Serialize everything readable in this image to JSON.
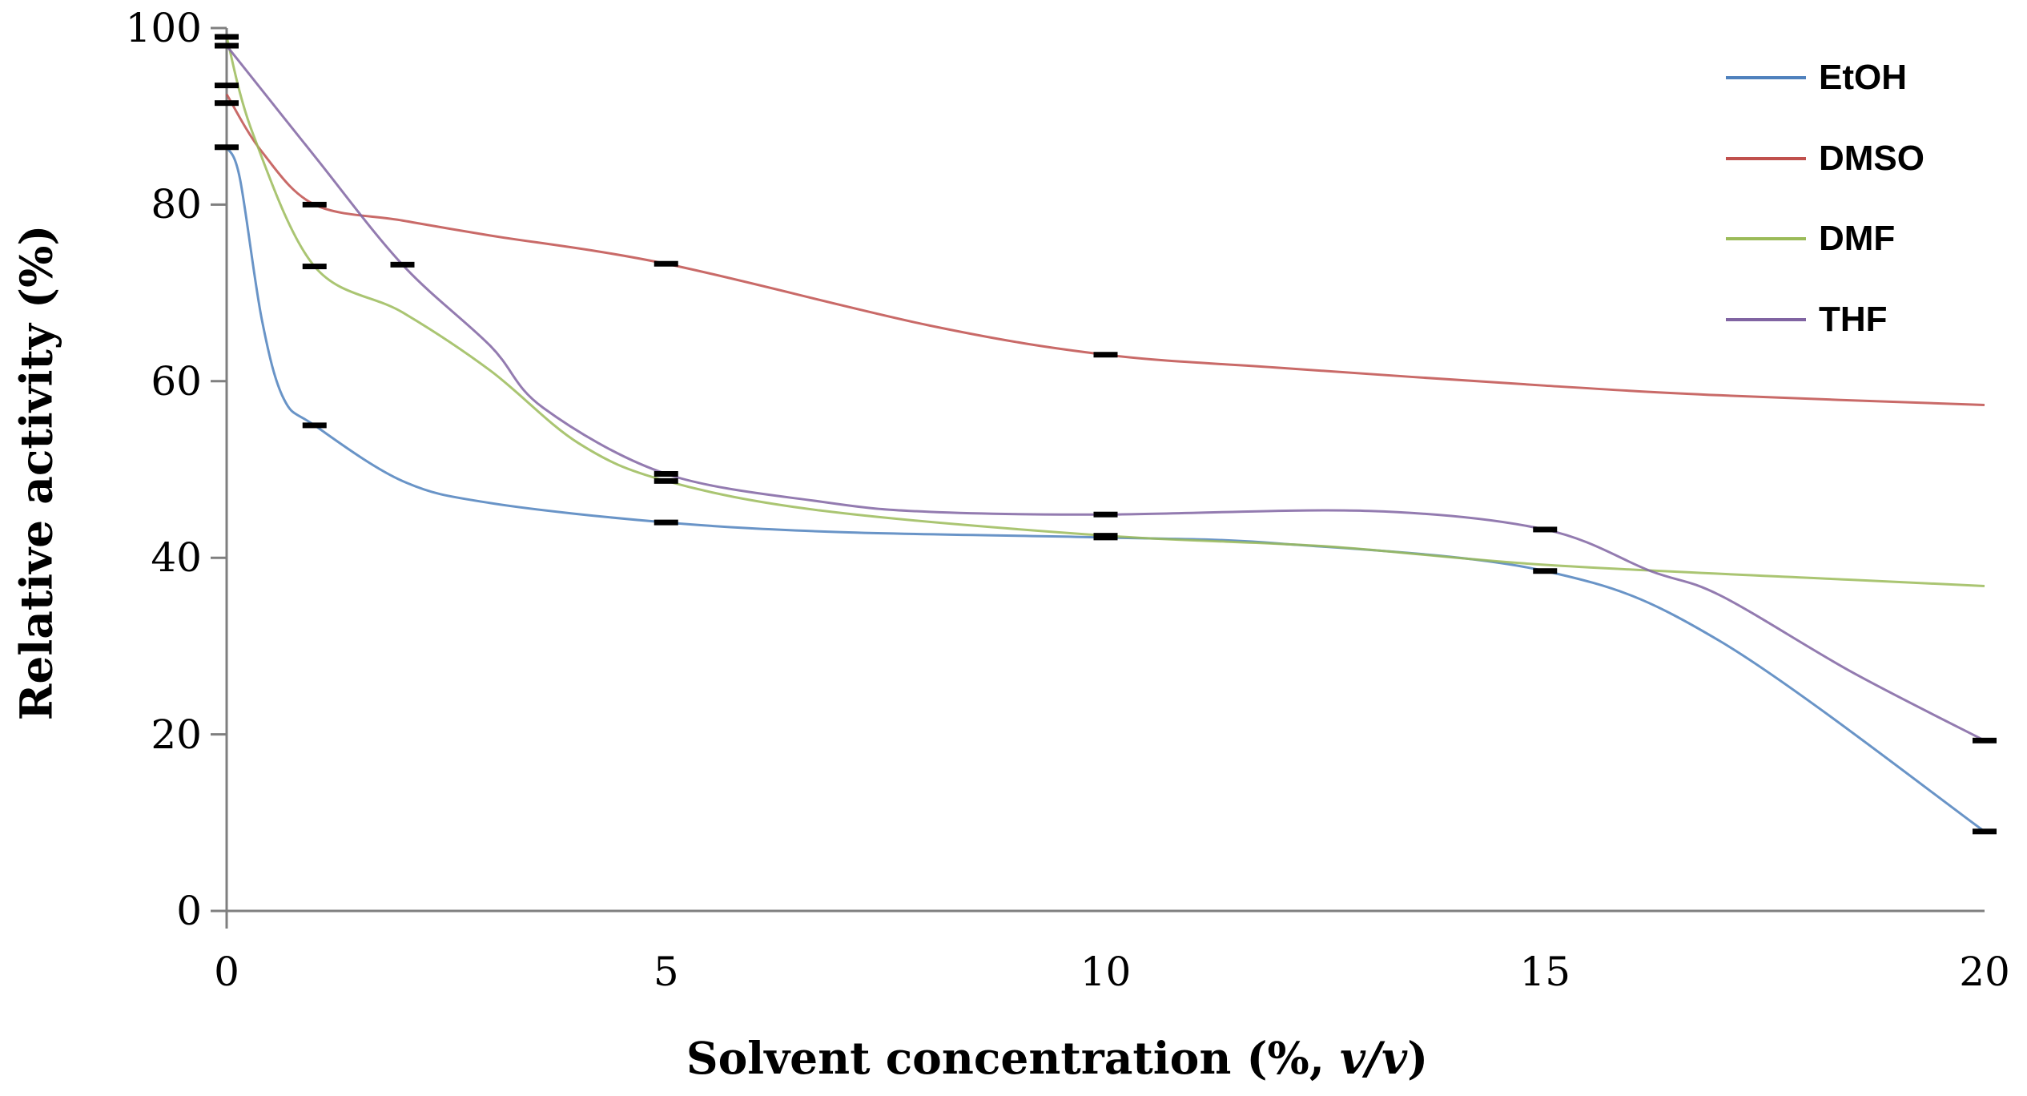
{
  "chart_data": {
    "type": "line",
    "title": "",
    "xlabel": {
      "prefix": "Solvent concentration (%, ",
      "italic": "v/v",
      "suffix": ")"
    },
    "ylabel": "Relative activity (%)",
    "x_ticks": [
      0,
      5,
      10,
      15,
      20
    ],
    "y_ticks": [
      0,
      20,
      40,
      60,
      80,
      100
    ],
    "xlim": [
      0,
      20
    ],
    "ylim": [
      0,
      100
    ],
    "grid": false,
    "legend_position": "top-right",
    "axis_color": "#7f7f7f",
    "marker_color": "#000000",
    "series": [
      {
        "name": "EtOH",
        "color": "#4f81bd",
        "points": [
          {
            "x": 0,
            "y": 86.5
          },
          {
            "x": 1,
            "y": 55
          },
          {
            "x": 5,
            "y": 44
          },
          {
            "x": 10,
            "y": 42.3
          },
          {
            "x": 15,
            "y": 38.5
          },
          {
            "x": 20,
            "y": 9
          }
        ],
        "shape": [
          [
            0.15,
            83
          ],
          [
            0.4,
            67
          ],
          [
            0.65,
            58
          ],
          [
            2,
            48.7
          ],
          [
            3,
            46.2
          ],
          [
            7,
            42.9
          ],
          [
            12,
            41.6
          ],
          [
            17,
            30.5
          ]
        ]
      },
      {
        "name": "DMSO",
        "color": "#c0504d",
        "points": [
          {
            "x": 0,
            "y": 92.5,
            "err": 1
          },
          {
            "x": 1,
            "y": 80
          },
          {
            "x": 5,
            "y": 73.3
          },
          {
            "x": 10,
            "y": 63
          },
          {
            "x": 15,
            "y": 59.5,
            "m": 0
          },
          {
            "x": 20,
            "y": 57.3,
            "m": 0
          }
        ],
        "shape": [
          [
            0.4,
            86
          ],
          [
            2,
            78.2
          ],
          [
            3,
            76.5
          ],
          [
            8,
            66.3
          ],
          [
            12,
            61.5
          ],
          [
            17,
            58.4
          ]
        ]
      },
      {
        "name": "DMF",
        "color": "#9bbb59",
        "points": [
          {
            "x": 0,
            "y": 99
          },
          {
            "x": 1,
            "y": 73
          },
          {
            "x": 5,
            "y": 48.7
          },
          {
            "x": 10,
            "y": 42.5
          },
          {
            "x": 15,
            "y": 39.2,
            "m": 0
          },
          {
            "x": 20,
            "y": 36.8,
            "m": 0
          }
        ],
        "shape": [
          [
            0.3,
            88
          ],
          [
            2,
            67.8
          ],
          [
            3,
            61.2
          ],
          [
            4,
            53
          ],
          [
            6.8,
            45.3
          ],
          [
            12.5,
            41.3
          ],
          [
            18.5,
            37.5
          ]
        ]
      },
      {
        "name": "THF",
        "color": "#8064a2",
        "points": [
          {
            "x": 0,
            "y": 98
          },
          {
            "x": 2,
            "y": 73.2
          },
          {
            "x": 5,
            "y": 49.5
          },
          {
            "x": 10,
            "y": 44.9
          },
          {
            "x": 15,
            "y": 43.2
          },
          {
            "x": 20,
            "y": 19.3
          }
        ],
        "shape": [
          [
            1,
            85.5
          ],
          [
            3,
            64
          ],
          [
            3.6,
            57
          ],
          [
            6.8,
            46.3
          ],
          [
            8,
            45.2
          ],
          [
            13,
            45.3
          ],
          [
            16.2,
            38.5
          ],
          [
            17,
            35.7
          ],
          [
            18.5,
            27
          ]
        ]
      }
    ]
  }
}
